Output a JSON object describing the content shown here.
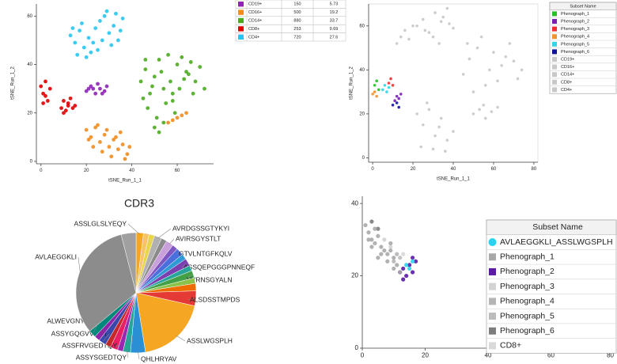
{
  "chart_data": [
    {
      "type": "scatter",
      "x_label": "tSNE_Run_1_1",
      "y_label": "tSNE_Run_1_2",
      "xlim": [
        -2,
        76
      ],
      "ylim": [
        -1,
        65
      ],
      "xticks": [
        0,
        20,
        40,
        60
      ],
      "yticks": [
        0,
        20,
        40,
        60
      ],
      "series": [
        {
          "name": "CD19+",
          "count": 150,
          "percent": 5.73,
          "color": "#8e24b8",
          "x": [
            20,
            22,
            24,
            26,
            28,
            23,
            25,
            27,
            29,
            21
          ],
          "y": [
            29,
            31,
            28,
            30,
            29,
            30,
            32,
            28,
            31,
            30
          ]
        },
        {
          "name": "CD16+",
          "count": 500,
          "percent": 19.2,
          "color": "#f28c1e",
          "x": [
            20,
            22,
            24,
            26,
            28,
            30,
            32,
            34,
            36,
            38,
            23,
            27,
            31,
            35,
            25,
            29,
            33,
            37,
            21,
            39,
            56,
            58,
            60,
            62,
            64
          ],
          "y": [
            13,
            10,
            14,
            8,
            11,
            6,
            9,
            5,
            7,
            3,
            6,
            4,
            2,
            12,
            15,
            13,
            10,
            1,
            9,
            6,
            16,
            17,
            18,
            19,
            20
          ]
        },
        {
          "name": "CD14+",
          "count": 880,
          "percent": 33.7,
          "color": "#4caa1f",
          "x": [
            44,
            46,
            48,
            50,
            52,
            54,
            56,
            58,
            60,
            62,
            64,
            66,
            68,
            70,
            72,
            47,
            51,
            55,
            59,
            63,
            67,
            45,
            49,
            53,
            57,
            61,
            65,
            50,
            54,
            58,
            46,
            52
          ],
          "y": [
            33,
            38,
            28,
            35,
            42,
            30,
            44,
            25,
            40,
            43,
            37,
            41,
            33,
            39,
            30,
            22,
            18,
            24,
            20,
            34,
            28,
            26,
            31,
            37,
            33,
            30,
            36,
            14,
            16,
            28,
            42,
            12
          ]
        },
        {
          "name": "CD8+",
          "count": 253,
          "percent": 9.69,
          "color": "#e00000",
          "x": [
            0,
            1,
            2,
            3,
            1,
            4,
            9,
            10,
            11,
            12,
            13,
            14,
            10,
            12,
            15,
            2
          ],
          "y": [
            31,
            28,
            33,
            25,
            24,
            30,
            22,
            25,
            21,
            23,
            26,
            22,
            20,
            24,
            23,
            27
          ]
        },
        {
          "name": "CD4+",
          "count": 720,
          "percent": 27.6,
          "color": "#29c5f0",
          "x": [
            13,
            15,
            17,
            19,
            21,
            16,
            18,
            22,
            24,
            26,
            28,
            30,
            32,
            34,
            36,
            27,
            29,
            31,
            33,
            20,
            23,
            35,
            25,
            14
          ],
          "y": [
            52,
            49,
            54,
            47,
            51,
            44,
            57,
            45,
            55,
            58,
            60,
            53,
            56,
            50,
            59,
            50,
            62,
            48,
            61,
            43,
            49,
            54,
            46,
            55
          ]
        }
      ]
    },
    {
      "type": "scatter",
      "x_label": "tSNE_Run_1_1",
      "y_label": "tSNE_Run_1_2",
      "legend_title": "Subset Name",
      "xlim": [
        -2,
        82
      ],
      "ylim": [
        -2,
        70
      ],
      "xticks": [
        0,
        20,
        40,
        60,
        80
      ],
      "yticks": [
        0,
        20,
        40,
        60
      ],
      "series": [
        {
          "name": "Phenograph_1",
          "color": "#22c322",
          "x": [
            1,
            2,
            3
          ],
          "y": [
            33,
            35,
            31
          ]
        },
        {
          "name": "Phenograph_2",
          "color": "#7a1fb8",
          "x": [
            11,
            12,
            13,
            14
          ],
          "y": [
            26,
            28,
            27,
            29
          ]
        },
        {
          "name": "Phenograph_3",
          "color": "#f03030",
          "x": [
            8,
            9,
            10
          ],
          "y": [
            34,
            36,
            33
          ]
        },
        {
          "name": "Phenograph_4",
          "color": "#f5922a",
          "x": [
            0,
            1,
            2
          ],
          "y": [
            29,
            30,
            28
          ]
        },
        {
          "name": "Phenograph_5",
          "color": "#2fd8e8",
          "x": [
            5,
            6,
            7,
            8
          ],
          "y": [
            31,
            33,
            30,
            32
          ]
        },
        {
          "name": "Phenograph_6",
          "color": "#1010a0",
          "x": [
            10,
            12,
            13
          ],
          "y": [
            24,
            25,
            23
          ]
        },
        {
          "name": "CD19+",
          "color": "#c8c8c8",
          "x": [
            50,
            53,
            56,
            59,
            62,
            55
          ],
          "y": [
            20,
            22,
            18,
            21,
            23,
            24
          ]
        },
        {
          "name": "CD16+",
          "color": "#c8c8c8",
          "x": [
            22,
            25,
            28,
            31,
            34,
            37,
            40,
            24,
            30,
            36,
            27,
            33
          ],
          "y": [
            20,
            15,
            22,
            10,
            18,
            8,
            12,
            5,
            4,
            3,
            25,
            14
          ]
        },
        {
          "name": "CD14+",
          "color": "#c8c8c8",
          "x": [
            45,
            48,
            52,
            56,
            60,
            64,
            68,
            72,
            50,
            58,
            66,
            54,
            62,
            70,
            47,
            74
          ],
          "y": [
            38,
            45,
            50,
            33,
            48,
            42,
            52,
            36,
            30,
            40,
            46,
            55,
            35,
            44,
            52,
            40
          ]
        },
        {
          "name": "CD8+",
          "color": "#c8c8c8",
          "x": [
            12,
            14,
            16,
            18,
            20
          ],
          "y": [
            52,
            55,
            58,
            54,
            60
          ]
        },
        {
          "name": "CD4+",
          "color": "#c8c8c8",
          "x": [
            22,
            25,
            28,
            31,
            34,
            37,
            40,
            30,
            35,
            26,
            38,
            33
          ],
          "y": [
            60,
            63,
            57,
            66,
            62,
            68,
            59,
            55,
            64,
            58,
            61,
            52
          ]
        }
      ]
    },
    {
      "type": "pie",
      "title": "CDR3",
      "categories": [
        "ASSLGLSLYEQY",
        null,
        null,
        "AVRDGSSGTYKYI",
        null,
        "AVIRSGYSTLT",
        null,
        "GTVLNTGFKQLV",
        null,
        "ASSQEPGGGPNNEQF",
        null,
        "VVRNSGYALN",
        null,
        null,
        "ALSDSSTMPDS",
        "ASSLWGSPLH",
        "QHLHRYAV",
        "ASSYSGEDTQY",
        null,
        "ASSFRVGEDTQY",
        null,
        "ASSYGQGVVGYT",
        null,
        "ALWEVGNYKKL",
        "AVLAEGGKLI",
        null
      ],
      "values": [
        2,
        1.5,
        1.5,
        2,
        1.5,
        2,
        1.5,
        2,
        1.5,
        2,
        1.5,
        2,
        1.5,
        2,
        4,
        19,
        4,
        2,
        1.5,
        2,
        1.5,
        2,
        1.5,
        2,
        32,
        4
      ],
      "colors": [
        "#f5a623",
        "#f7c36a",
        "#e8d44d",
        "#b0b0b0",
        "#8a8a8a",
        "#c9a0dc",
        "#7e57c2",
        "#4a6fdc",
        "#2e9bd6",
        "#7b3fb0",
        "#26a69a",
        "#43a047",
        "#8bc34a",
        "#ef6c00",
        "#e53935",
        "#f5a623",
        "#2b8fd6",
        "#26a69a",
        "#9c27b0",
        "#e91e63",
        "#c62828",
        "#3949ab",
        "#8e24aa",
        "#00897b",
        "#8c8c8c",
        "#a0a0a0"
      ]
    },
    {
      "type": "scatter",
      "legend_title": "Subset Name",
      "xlim": [
        0,
        80
      ],
      "ylim": [
        0,
        42
      ],
      "xticks": [
        0,
        20,
        40,
        60,
        80
      ],
      "yticks": [
        0,
        20,
        40
      ],
      "series": [
        {
          "name": "AVLAEGGKLI_ASSLWGSPLH",
          "color": "#29d2f0",
          "marker": "circle",
          "x": [
            14,
            15,
            16
          ],
          "y": [
            23,
            22,
            24
          ]
        },
        {
          "name": "Phenograph_1",
          "color": "#a9a9a9",
          "x": [
            1,
            2,
            3,
            4,
            5,
            6,
            7,
            8,
            9,
            10,
            11,
            2,
            4,
            6,
            8,
            10,
            12,
            3,
            5,
            9
          ],
          "y": [
            34,
            32,
            30,
            29,
            31,
            28,
            27,
            26,
            27,
            25,
            23,
            30,
            33,
            26,
            24,
            22,
            21,
            28,
            25,
            29
          ]
        },
        {
          "name": "Phenograph_2",
          "color": "#5b1aa8",
          "x": [
            12,
            13,
            14,
            15,
            16,
            17,
            13,
            16
          ],
          "y": [
            21,
            22,
            20,
            23,
            25,
            24,
            19,
            21
          ]
        },
        {
          "name": "Phenograph_3",
          "color": "#d3d3d3",
          "x": [
            7,
            9
          ],
          "y": [
            30,
            28
          ]
        },
        {
          "name": "Phenograph_4",
          "color": "#b5b5b5",
          "x": [
            10,
            11
          ],
          "y": [
            24,
            26
          ]
        },
        {
          "name": "Phenograph_5",
          "color": "#bdbdbd",
          "x": [
            12
          ],
          "y": [
            25
          ]
        },
        {
          "name": "Phenograph_6",
          "color": "#7d7d7d",
          "x": [
            3,
            5
          ],
          "y": [
            35,
            33
          ]
        },
        {
          "name": "CD8+",
          "color": "#d9d9d9",
          "x": [
            13
          ],
          "y": [
            26
          ]
        }
      ]
    }
  ]
}
